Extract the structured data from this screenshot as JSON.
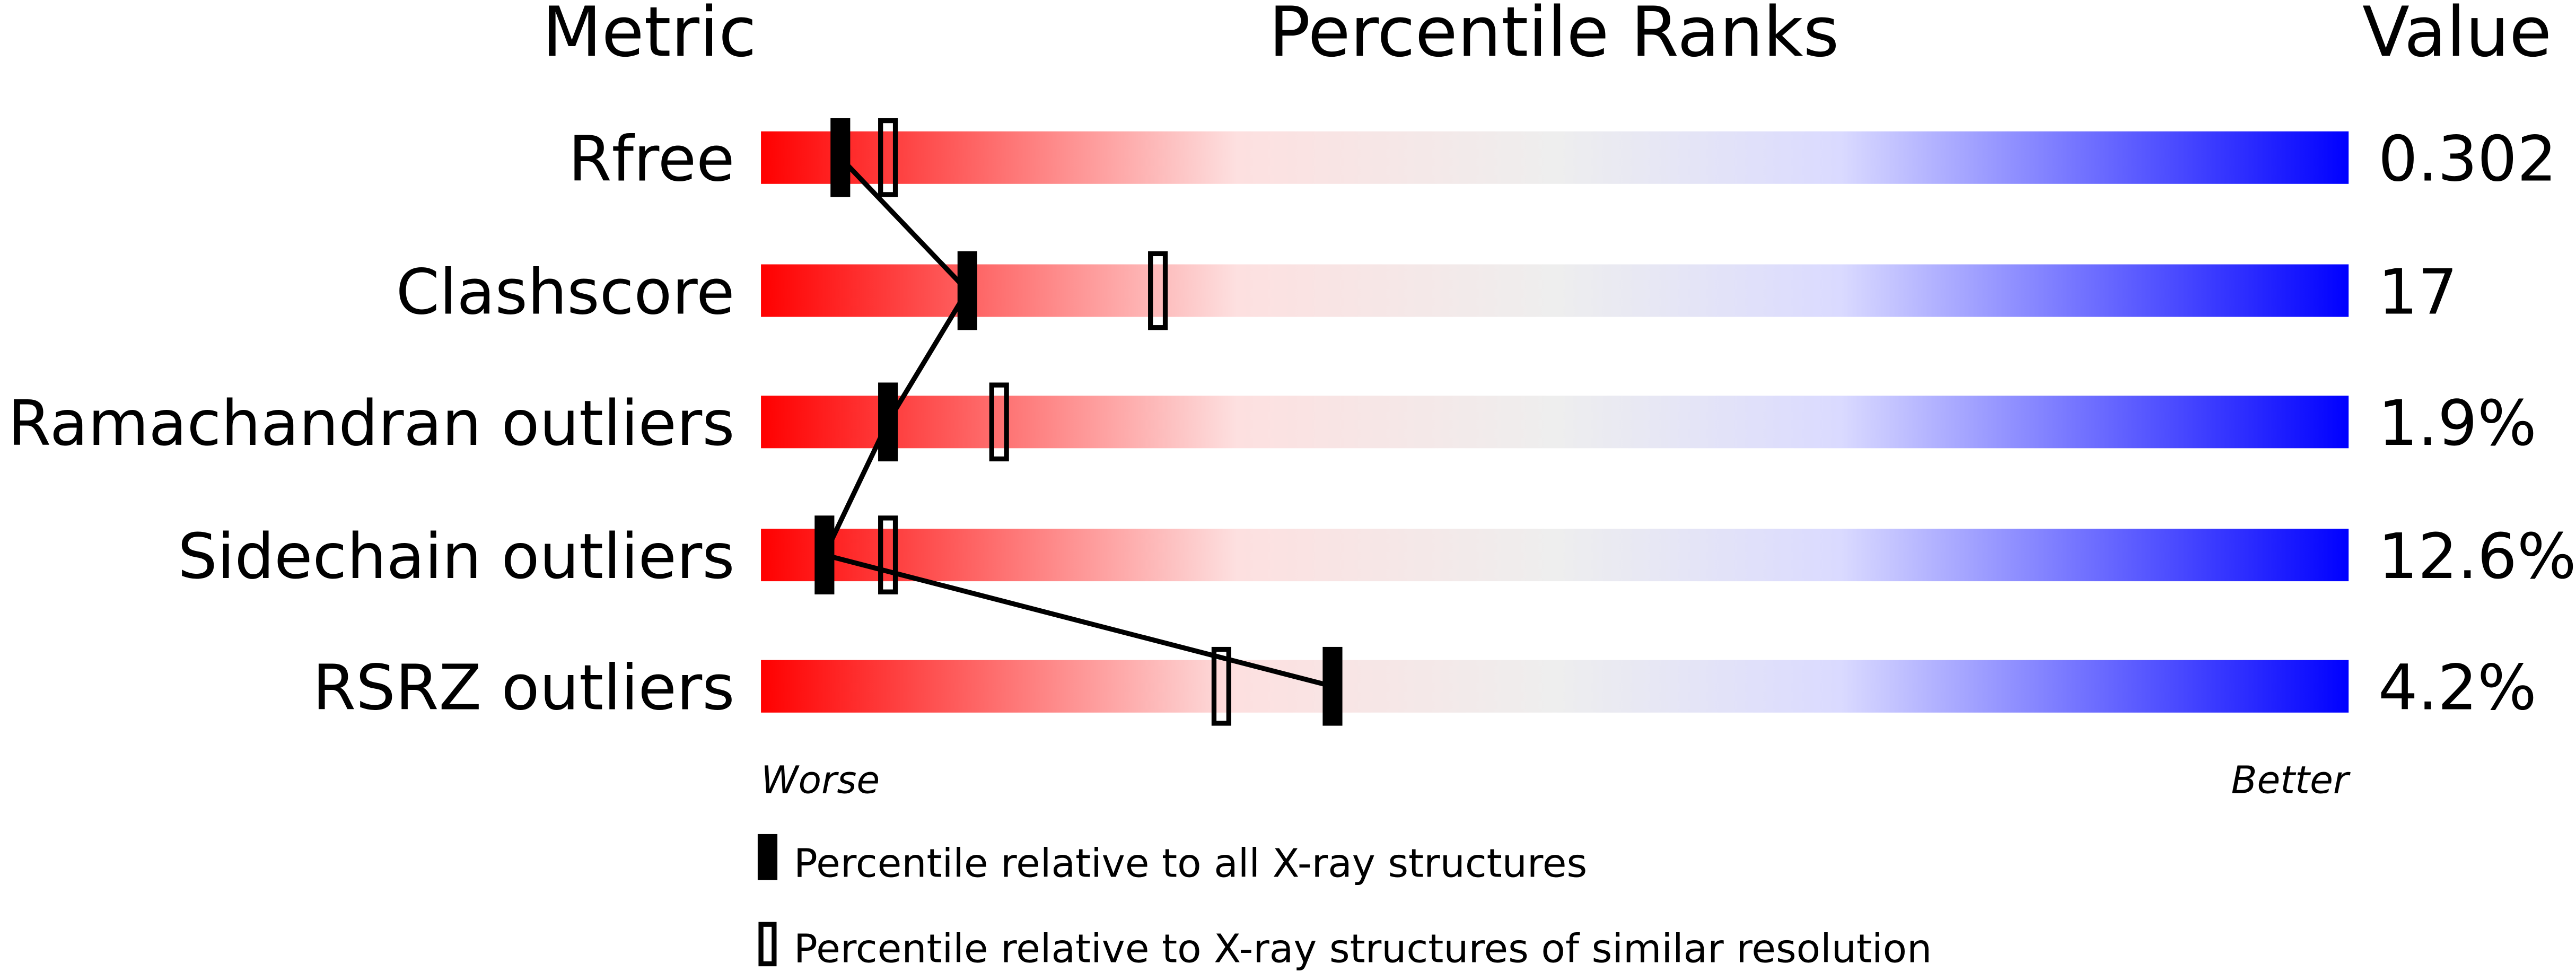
{
  "chart_data": {
    "type": "percentile-rank-bars",
    "headers": {
      "metric": "Metric",
      "percentile": "Percentile Ranks",
      "value": "Value"
    },
    "xlim": [
      0,
      100
    ],
    "axis_labels": {
      "left": "Worse",
      "right": "Better"
    },
    "gradient_colors": [
      "#ff0000",
      "#fde0e0",
      "#eeeeee",
      "#dadaff",
      "#0000ff"
    ],
    "rows": [
      {
        "metric": "Rfree",
        "value": "0.302",
        "all_xray": 5,
        "similar_resolution": 8
      },
      {
        "metric": "Clashscore",
        "value": "17",
        "all_xray": 13,
        "similar_resolution": 25
      },
      {
        "metric": "Ramachandran outliers",
        "value": "1.9%",
        "all_xray": 8,
        "similar_resolution": 15
      },
      {
        "metric": "Sidechain outliers",
        "value": "12.6%",
        "all_xray": 4,
        "similar_resolution": 8
      },
      {
        "metric": "RSRZ outliers",
        "value": "4.2%",
        "all_xray": 36,
        "similar_resolution": 29
      }
    ],
    "legend": {
      "all_xray": "Percentile relative to all X-ray structures",
      "similar_resolution": "Percentile relative to X-ray structures of similar resolution"
    }
  }
}
